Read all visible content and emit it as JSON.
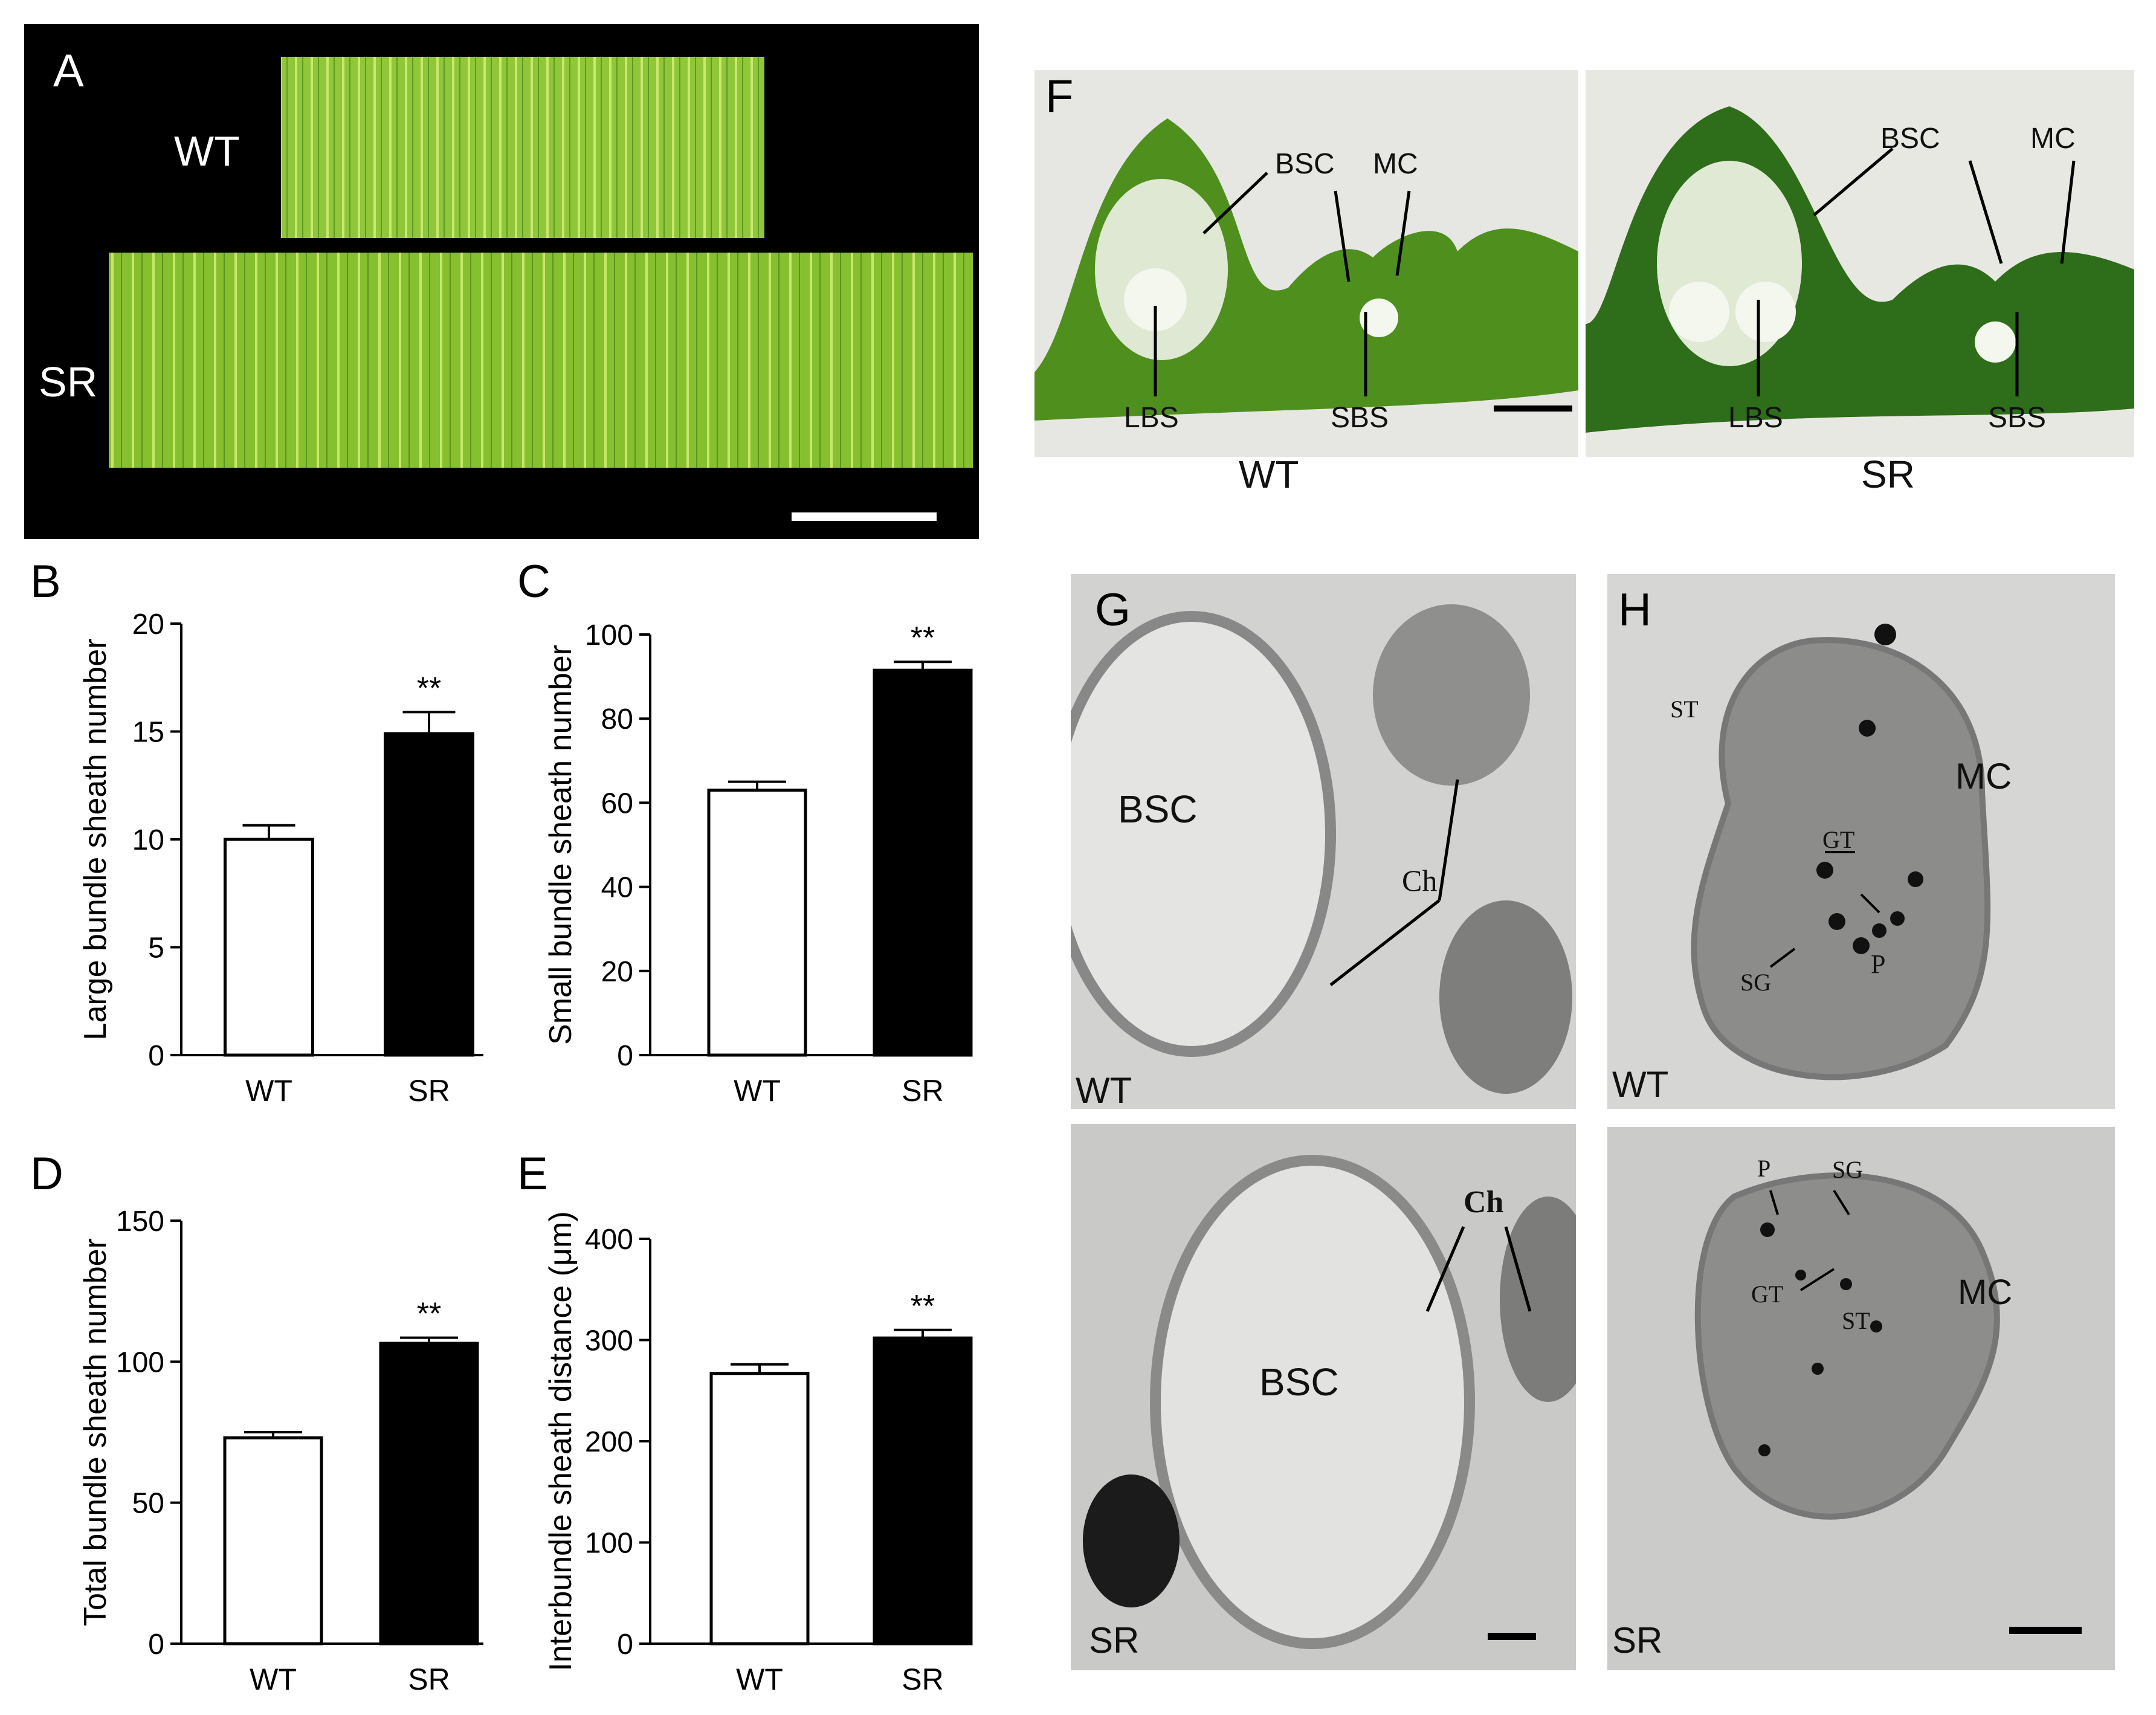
{
  "panels": {
    "A": {
      "label": "A",
      "rows": [
        "WT",
        "SR"
      ]
    },
    "F": {
      "label": "F",
      "captions": [
        "WT",
        "SR"
      ],
      "wt_annotations": [
        "BSC",
        "MC",
        "LBS",
        "SBS"
      ],
      "sr_annotations": [
        "BSC",
        "MC",
        "LBS",
        "SBS"
      ]
    },
    "G": {
      "label": "G",
      "wt_tag": "WT",
      "sr_tag": "SR",
      "wt_annotations": [
        "BSC",
        "Ch"
      ],
      "sr_annotations": [
        "BSC",
        "Ch"
      ]
    },
    "H": {
      "label": "H",
      "wt_tag": "WT",
      "sr_tag": "SR",
      "wt_annotations": [
        "ST",
        "GT",
        "MC",
        "P",
        "SG"
      ],
      "sr_annotations": [
        "P",
        "SG",
        "MC",
        "GT",
        "ST"
      ]
    }
  },
  "chart_data": [
    {
      "id": "B",
      "panel_label": "B",
      "type": "bar",
      "categories": [
        "WT",
        "SR"
      ],
      "values": [
        10.0,
        14.9
      ],
      "errors": [
        0.65,
        1.0
      ],
      "ylabel": "Large bundle sheath number",
      "ylim": [
        0,
        20
      ],
      "yticks": [
        "0",
        "5",
        "10",
        "15",
        "20"
      ],
      "significance": "**",
      "bar_colors": [
        "#ffffff",
        "#000000"
      ]
    },
    {
      "id": "C",
      "panel_label": "C",
      "type": "bar",
      "categories": [
        "WT",
        "SR"
      ],
      "values": [
        63,
        91.5
      ],
      "errors": [
        2,
        2
      ],
      "ylabel": "Small bundle sheath number",
      "ylim": [
        0,
        100
      ],
      "yticks": [
        "0",
        "20",
        "40",
        "60",
        "80",
        "100"
      ],
      "significance": "**",
      "bar_colors": [
        "#ffffff",
        "#000000"
      ]
    },
    {
      "id": "D",
      "panel_label": "D",
      "type": "bar",
      "categories": [
        "WT",
        "SR"
      ],
      "values": [
        73,
        106.5
      ],
      "errors": [
        2,
        2
      ],
      "ylabel": "Total bundle sheath number",
      "ylim": [
        0,
        150
      ],
      "yticks": [
        "0",
        "50",
        "100",
        "150"
      ],
      "significance": "**",
      "bar_colors": [
        "#ffffff",
        "#000000"
      ]
    },
    {
      "id": "E",
      "panel_label": "E",
      "type": "bar",
      "categories": [
        "WT",
        "SR"
      ],
      "values": [
        267,
        302
      ],
      "errors": [
        9,
        8
      ],
      "ylabel": "Interbundle sheath distance (μm)",
      "ylim": [
        0,
        400
      ],
      "yticks": [
        "0",
        "100",
        "200",
        "300",
        "400"
      ],
      "significance": "**",
      "bar_colors": [
        "#ffffff",
        "#000000"
      ]
    }
  ]
}
